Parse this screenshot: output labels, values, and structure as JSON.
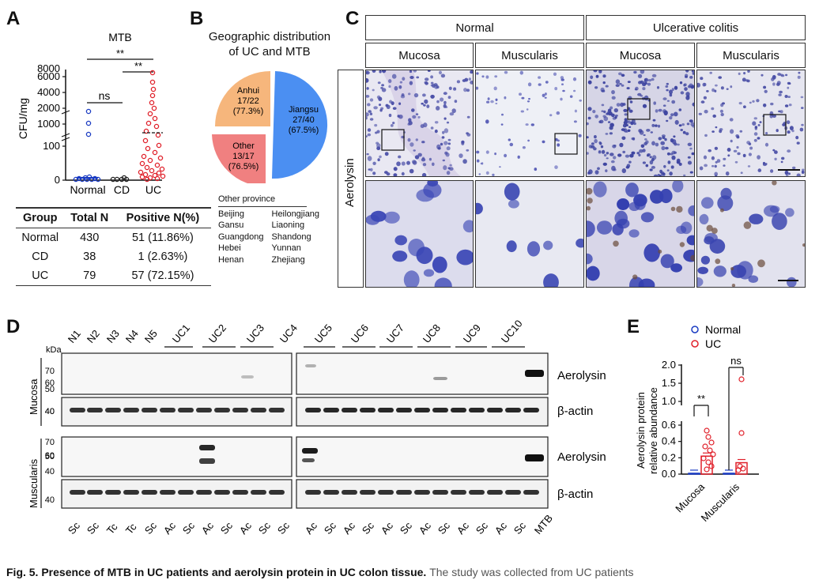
{
  "panels": {
    "A": "A",
    "B": "B",
    "C": "C",
    "D": "D",
    "E": "E"
  },
  "panelA": {
    "title": "MTB",
    "ylabel": "CFU/mg",
    "sig_top": "**",
    "sig_right": "**",
    "sig_ns": "ns",
    "yticks": [
      "0",
      "100",
      "1000",
      "2000",
      "4000",
      "6000",
      "8000"
    ],
    "xcats": [
      "Normal",
      "CD",
      "UC"
    ],
    "colors": {
      "normal": "#1a3bc2",
      "cd": "#222222",
      "uc": "#e0202a"
    },
    "table": {
      "headers": [
        "Group",
        "Total N",
        "Positive N(%)"
      ],
      "rows": [
        {
          "group": "Normal",
          "total": "430",
          "positive": "51 (11.86%)"
        },
        {
          "group": "CD",
          "total": "38",
          "positive": "1 (2.63%)"
        },
        {
          "group": "UC",
          "total": "79",
          "positive": "57 (72.15%)"
        }
      ]
    }
  },
  "panelB": {
    "title_line1": "Geographic distribution",
    "title_line2": "of UC and MTB",
    "slices": [
      {
        "name": "Jiangsu",
        "frac": "27/40",
        "pct": "(67.5%)",
        "color": "#4b8ff2"
      },
      {
        "name": "Anhui",
        "frac": "17/22",
        "pct": "(77.3%)",
        "color": "#f6b67c"
      },
      {
        "name": "Other",
        "frac": "13/17",
        "pct": "(76.5%)",
        "color": "#f08080"
      }
    ],
    "other_title": "Other province",
    "provinces_left": [
      "Beijing",
      "Gansu",
      "Guangdong",
      "Hebei",
      "Henan"
    ],
    "provinces_right": [
      "Heilongjiang",
      "Liaoning",
      "Shandong",
      "Yunnan",
      "Zhejiang"
    ]
  },
  "panelC": {
    "group_normal": "Normal",
    "group_uc": "Ulcerative colitis",
    "cols": [
      "Mucosa",
      "Muscularis",
      "Mucosa",
      "Muscularis"
    ],
    "row_label": "Aerolysin"
  },
  "panelD": {
    "lanes_top": [
      "N1",
      "N2",
      "N3",
      "N4",
      "N5",
      "UC1",
      "UC2",
      "UC3",
      "UC4",
      "UC5",
      "UC6",
      "UC7",
      "UC8",
      "UC9",
      "UC10"
    ],
    "kda": "kDa",
    "mw_top": [
      "70",
      "60",
      "50",
      "40"
    ],
    "mw_actin": [
      "40"
    ],
    "side_mucosa": "Mucosa",
    "side_muscularis": "Muscularis",
    "band_aerolysin": "Aerolysin",
    "band_actin": "β-actin",
    "lanes_bottom": [
      "Sc",
      "Sc",
      "Tc",
      "Tc",
      "Sc",
      "Ac",
      "Sc",
      "Ac",
      "Sc",
      "Ac",
      "Sc",
      "Sc",
      "Ac",
      "Sc",
      "Ac",
      "Sc",
      "Ac",
      "Sc",
      "Ac",
      "Sc",
      "Ac",
      "Sc",
      "Ac",
      "Sc",
      "MTB"
    ]
  },
  "chart_data": {
    "type": "bar",
    "title": "",
    "xlabel": "",
    "ylabel": "Aerolysin protein relative abundance",
    "categories": [
      "Mucosa",
      "Muscularis"
    ],
    "series": [
      {
        "name": "Normal",
        "values": [
          0.01,
          0.01
        ],
        "color": "#1a3bc2"
      },
      {
        "name": "UC",
        "values": [
          0.22,
          0.14
        ],
        "color": "#e0202a"
      }
    ],
    "yticks": [
      "0.0",
      "0.2",
      "0.4",
      "0.6",
      "1.0",
      "1.5",
      "2.0"
    ],
    "ylim": [
      0,
      2.0
    ],
    "axis_break": [
      0.65,
      0.9
    ],
    "significance": [
      "**",
      "ns"
    ],
    "legend": [
      "Normal",
      "UC"
    ]
  },
  "caption": {
    "bold": "Fig. 5. Presence of MTB in UC patients and aerolysin protein in UC colon tissue.",
    "rest": "The study was collected from UC patients"
  }
}
